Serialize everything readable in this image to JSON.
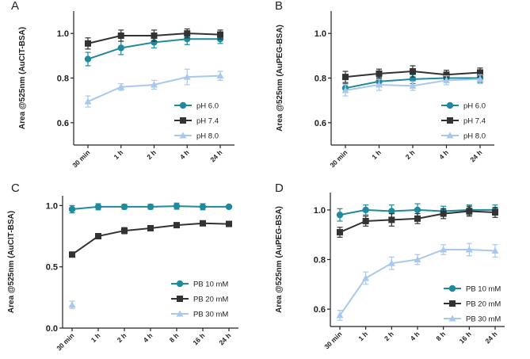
{
  "chart_data": [
    {
      "panel": "A",
      "type": "line",
      "ylabel": "Area @525nm (AuCIT-BSA)",
      "categories": [
        "30 min",
        "1 h",
        "2 h",
        "4 h",
        "24 h"
      ],
      "ylim": [
        0.5,
        1.1
      ],
      "yticks": [
        "0.6",
        "0.8",
        "1.0"
      ],
      "ytick_values": [
        0.6,
        0.8,
        1.0
      ],
      "series": [
        {
          "name": "pH 6.0",
          "color": "#1f8a9c",
          "marker": "circle",
          "values": [
            0.885,
            0.935,
            0.96,
            0.975,
            0.975
          ],
          "errors": [
            0.03,
            0.03,
            0.025,
            0.025,
            0.02
          ]
        },
        {
          "name": "pH 7.4",
          "color": "#333333",
          "marker": "square",
          "values": [
            0.955,
            0.99,
            0.99,
            1.0,
            0.995
          ],
          "errors": [
            0.025,
            0.025,
            0.025,
            0.02,
            0.02
          ]
        },
        {
          "name": "pH 8.0",
          "color": "#a8c8ee",
          "marker": "triangle",
          "values": [
            0.695,
            0.76,
            0.77,
            0.805,
            0.81
          ],
          "errors": [
            0.025,
            0.015,
            0.02,
            0.035,
            0.02
          ]
        }
      ]
    },
    {
      "panel": "B",
      "type": "line",
      "ylabel": "Area @525nm (AuPEG-BSA)",
      "categories": [
        "30 min",
        "1 h",
        "2 h",
        "4 h",
        "24 h"
      ],
      "ylim": [
        0.5,
        1.1
      ],
      "yticks": [
        "0.6",
        "0.8",
        "1.0"
      ],
      "ytick_values": [
        0.6,
        0.8,
        1.0
      ],
      "series": [
        {
          "name": "pH 6.0",
          "color": "#1f8a9c",
          "marker": "circle",
          "values": [
            0.755,
            0.785,
            0.795,
            0.8,
            0.8
          ],
          "errors": [
            0.02,
            0.02,
            0.02,
            0.02,
            0.02
          ]
        },
        {
          "name": "pH 7.4",
          "color": "#333333",
          "marker": "square",
          "values": [
            0.805,
            0.82,
            0.83,
            0.815,
            0.825
          ],
          "errors": [
            0.025,
            0.02,
            0.025,
            0.02,
            0.02
          ]
        },
        {
          "name": "pH 8.0",
          "color": "#a8c8ee",
          "marker": "triangle",
          "values": [
            0.745,
            0.77,
            0.765,
            0.79,
            0.795
          ],
          "errors": [
            0.025,
            0.025,
            0.02,
            0.02,
            0.02
          ]
        }
      ]
    },
    {
      "panel": "C",
      "type": "line",
      "ylabel": "Area @525nm (AuCIT-BSA)",
      "categories": [
        "30 min",
        "1 h",
        "2 h",
        "4 h",
        "8 h",
        "16 h",
        "24 h"
      ],
      "ylim": [
        0.0,
        1.08
      ],
      "yticks": [
        "0.0",
        "0.5",
        "1.0"
      ],
      "ytick_values": [
        0.0,
        0.5,
        1.0
      ],
      "series": [
        {
          "name": "PB 10 mM",
          "color": "#1f8a9c",
          "marker": "circle",
          "connected": true,
          "values": [
            0.97,
            0.99,
            0.99,
            0.99,
            0.995,
            0.99,
            0.99
          ],
          "errors": [
            0.03,
            0.025,
            0.02,
            0.02,
            0.025,
            0.025,
            0.01
          ]
        },
        {
          "name": "PB 20 mM",
          "color": "#333333",
          "marker": "square",
          "connected": true,
          "values": [
            0.6,
            0.75,
            0.795,
            0.815,
            0.84,
            0.855,
            0.85
          ],
          "errors": [
            0.015,
            0.02,
            0.025,
            0.015,
            0.015,
            0.015,
            0.02
          ]
        },
        {
          "name": "PB 30 mM",
          "color": "#a8c8ee",
          "marker": "triangle",
          "connected": false,
          "values": [
            0.19,
            null,
            null,
            null,
            null,
            null,
            null
          ],
          "errors": [
            0.03,
            null,
            null,
            null,
            null,
            null,
            null
          ]
        }
      ]
    },
    {
      "panel": "D",
      "type": "line",
      "ylabel": "Area @525nm (AuPEG-BSA)",
      "categories": [
        "30 min",
        "1 h",
        "2 h",
        "4 h",
        "8 h",
        "16 h",
        "24 h"
      ],
      "ylim": [
        0.53,
        1.07
      ],
      "yticks": [
        "0.6",
        "0.8",
        "1.0"
      ],
      "ytick_values": [
        0.6,
        0.8,
        1.0
      ],
      "series": [
        {
          "name": "PB 10 mM",
          "color": "#1f8a9c",
          "marker": "circle",
          "connected": true,
          "values": [
            0.98,
            1.0,
            0.995,
            1.0,
            0.995,
            1.0,
            1.0
          ],
          "errors": [
            0.025,
            0.02,
            0.025,
            0.025,
            0.02,
            0.02,
            0.02
          ]
        },
        {
          "name": "PB 20 mM",
          "color": "#333333",
          "marker": "square",
          "connected": true,
          "values": [
            0.91,
            0.955,
            0.96,
            0.965,
            0.985,
            0.995,
            0.99
          ],
          "errors": [
            0.02,
            0.02,
            0.025,
            0.02,
            0.02,
            0.02,
            0.02
          ]
        },
        {
          "name": "PB 30 mM",
          "color": "#a8c8ee",
          "marker": "triangle",
          "connected": true,
          "values": [
            0.575,
            0.725,
            0.785,
            0.8,
            0.84,
            0.84,
            0.835
          ],
          "errors": [
            0.02,
            0.025,
            0.025,
            0.02,
            0.02,
            0.025,
            0.025
          ]
        }
      ]
    }
  ]
}
